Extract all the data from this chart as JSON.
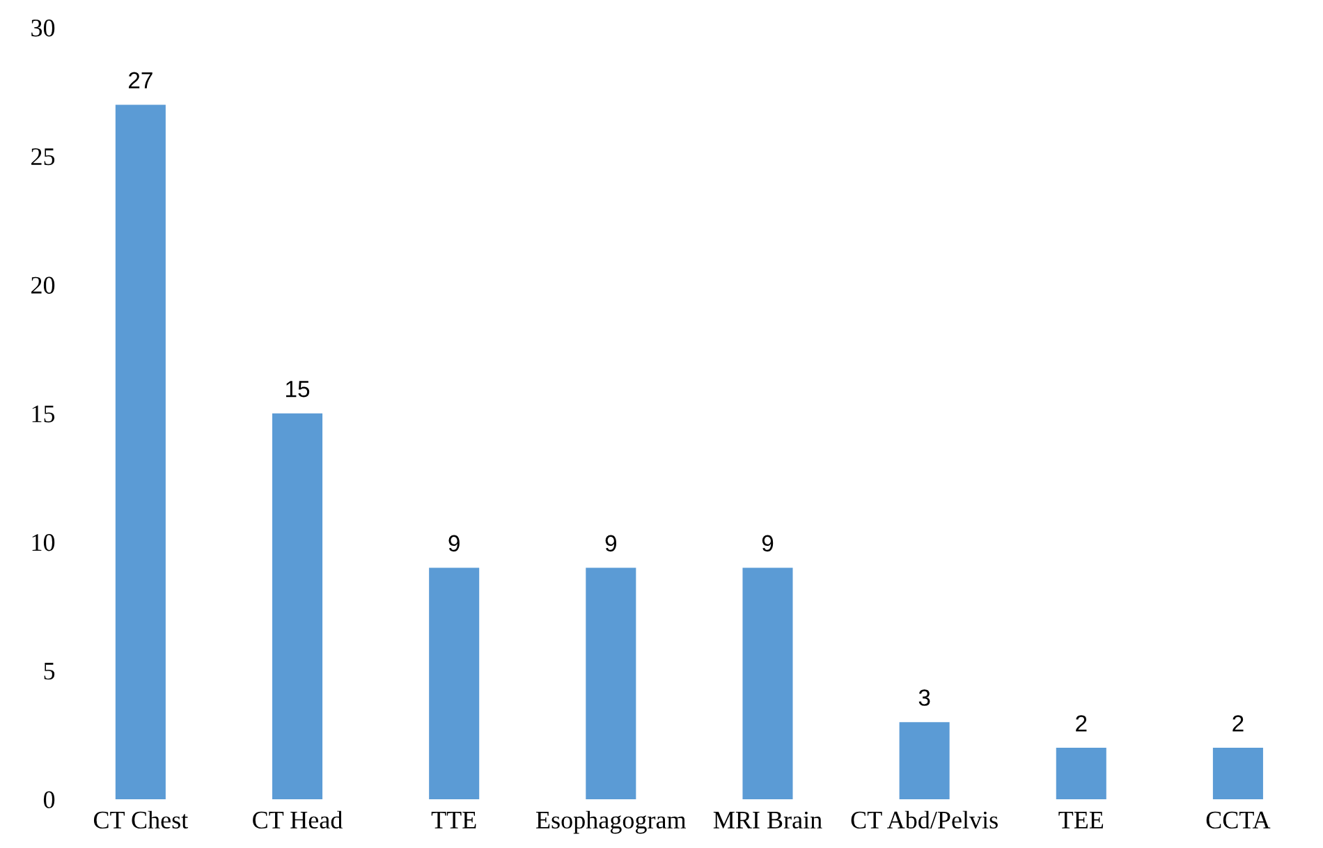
{
  "chart_data": {
    "type": "bar",
    "categories": [
      "CT Chest",
      "CT Head",
      "TTE",
      "Esophagogram",
      "MRI Brain",
      "CT Abd/Pelvis",
      "TEE",
      "CCTA"
    ],
    "values": [
      27,
      15,
      9,
      9,
      9,
      3,
      2,
      2
    ],
    "color": "#5b9bd5",
    "ylim": [
      0,
      30
    ],
    "yticks": [
      0,
      5,
      10,
      15,
      20,
      25,
      30
    ],
    "grid": false,
    "data_labels": true
  }
}
